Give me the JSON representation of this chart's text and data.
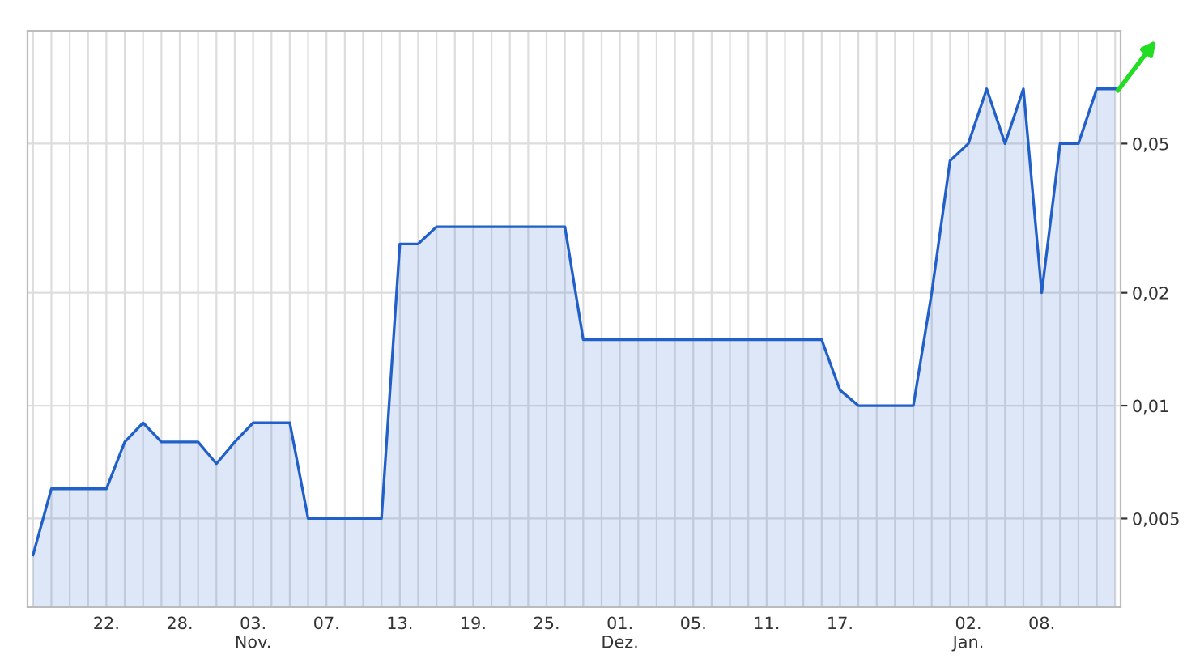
{
  "chart_data": {
    "type": "area",
    "categories": [
      null,
      null,
      null,
      null,
      "22.",
      null,
      null,
      null,
      "28.",
      null,
      null,
      null,
      "03.\nNov.",
      null,
      null,
      null,
      "07.",
      null,
      null,
      null,
      "13.",
      null,
      null,
      null,
      "19.",
      null,
      null,
      null,
      "25.",
      null,
      null,
      null,
      "01.\nDez.",
      null,
      null,
      null,
      "05.",
      null,
      null,
      null,
      "11.",
      null,
      null,
      null,
      "17.",
      null,
      null,
      null,
      null,
      null,
      null,
      "02.\nJan.",
      null,
      null,
      null,
      "08.",
      null,
      null,
      null,
      null
    ],
    "series": [
      {
        "color": "#2060c8",
        "values": [
          0.004,
          0.006,
          0.006,
          0.006,
          0.006,
          0.008,
          0.009,
          0.008,
          0.008,
          0.008,
          0.007,
          0.008,
          0.009,
          0.009,
          0.009,
          0.005,
          0.005,
          0.005,
          0.005,
          0.005,
          0.027,
          0.027,
          0.03,
          0.03,
          0.03,
          0.03,
          0.03,
          0.03,
          0.03,
          0.03,
          0.015,
          0.015,
          0.015,
          0.015,
          0.015,
          0.015,
          0.015,
          0.015,
          0.015,
          0.015,
          0.015,
          0.015,
          0.015,
          0.015,
          0.011,
          0.01,
          0.01,
          0.01,
          0.01,
          0.02,
          0.045,
          0.05,
          0.07,
          0.05,
          0.07,
          0.02,
          0.05,
          0.05,
          0.07,
          0.07
        ]
      }
    ],
    "log": "y",
    "ylim": [
      0.0029,
      0.1
    ],
    "yticks": [
      {
        "value": 0.005,
        "label": "0,005"
      },
      {
        "value": 0.01,
        "label": "0,01"
      },
      {
        "value": 0.02,
        "label": "0,02"
      },
      {
        "value": 0.05,
        "label": "0,05"
      }
    ],
    "grid": true
  }
}
